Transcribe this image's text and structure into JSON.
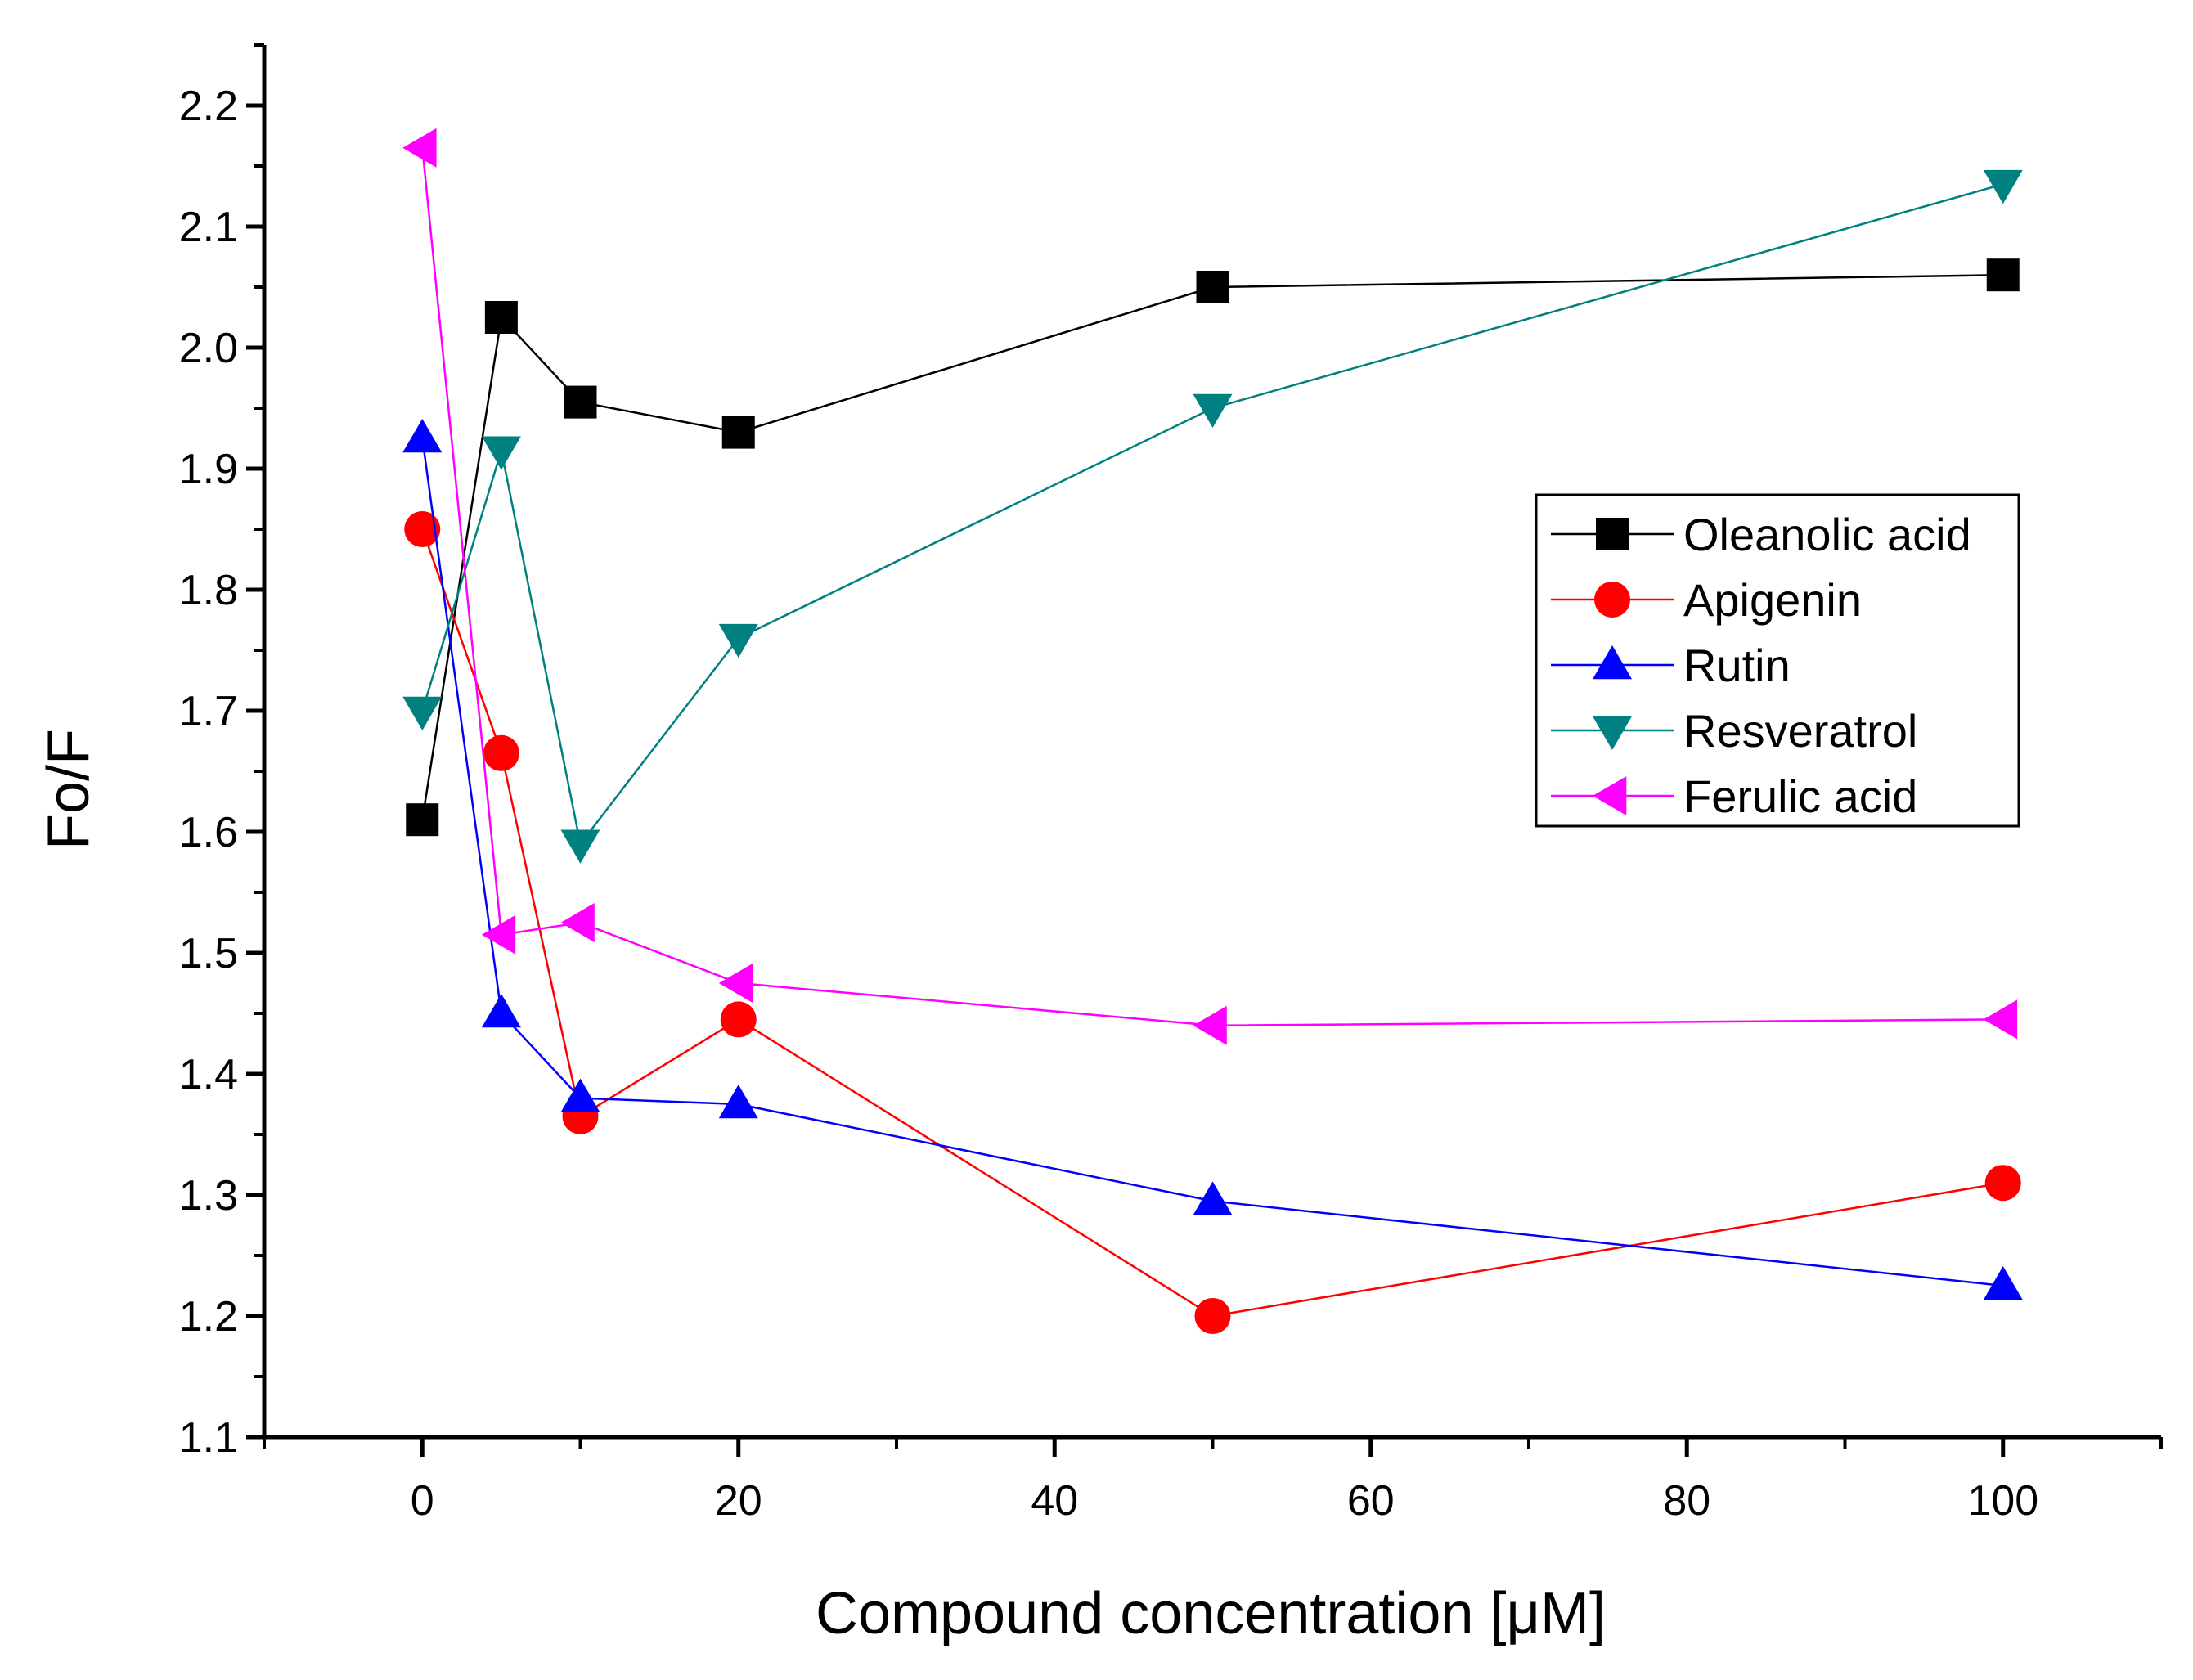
{
  "chart_data": {
    "type": "line",
    "title": "",
    "xlabel": "Compound concentration [μM]",
    "ylabel": "Fo/F",
    "xlim": [
      -10,
      110
    ],
    "ylim": [
      1.1,
      2.25
    ],
    "x_ticks": [
      0,
      20,
      40,
      60,
      80,
      100
    ],
    "x_tick_labels": [
      "0",
      "20",
      "40",
      "60",
      "80",
      "100"
    ],
    "x_minor_ticks": [
      -10,
      10,
      30,
      50,
      70,
      90,
      110
    ],
    "y_ticks": [
      1.1,
      1.2,
      1.3,
      1.4,
      1.5,
      1.6,
      1.7,
      1.8,
      1.9,
      2.0,
      2.1,
      2.2
    ],
    "y_tick_labels": [
      "1.1",
      "1.2",
      "1.3",
      "1.4",
      "1.5",
      "1.6",
      "1.7",
      "1.8",
      "1.9",
      "2.0",
      "2.1",
      "2.2"
    ],
    "y_minor_ticks": [
      1.15,
      1.25,
      1.35,
      1.45,
      1.55,
      1.65,
      1.75,
      1.85,
      1.95,
      2.05,
      2.15,
      2.25
    ],
    "grid": false,
    "legend_position": "right",
    "series": [
      {
        "name": "Oleanolic acid",
        "marker": "square",
        "color": "#000000",
        "x": [
          0,
          5,
          10,
          20,
          50,
          100
        ],
        "y": [
          1.61,
          2.025,
          1.955,
          1.93,
          2.05,
          2.06
        ]
      },
      {
        "name": "Apigenin",
        "marker": "circle",
        "color": "#ff0000",
        "x": [
          0,
          5,
          10,
          20,
          50,
          100
        ],
        "y": [
          1.85,
          1.665,
          1.365,
          1.445,
          1.2,
          1.31
        ]
      },
      {
        "name": "Rutin",
        "marker": "triangle-up",
        "color": "#0000ff",
        "x": [
          0,
          5,
          10,
          20,
          50,
          100
        ],
        "y": [
          1.925,
          1.45,
          1.38,
          1.375,
          1.295,
          1.225
        ]
      },
      {
        "name": "Resveratrol",
        "marker": "triangle-down",
        "color": "#008080",
        "x": [
          0,
          5,
          10,
          20,
          50,
          100
        ],
        "y": [
          1.7,
          1.915,
          1.59,
          1.76,
          1.95,
          2.135
        ]
      },
      {
        "name": "Ferulic acid",
        "marker": "triangle-left",
        "color": "#ff00ff",
        "x": [
          0,
          5,
          10,
          20,
          50,
          100
        ],
        "y": [
          2.165,
          1.515,
          1.525,
          1.475,
          1.44,
          1.445
        ]
      }
    ]
  }
}
